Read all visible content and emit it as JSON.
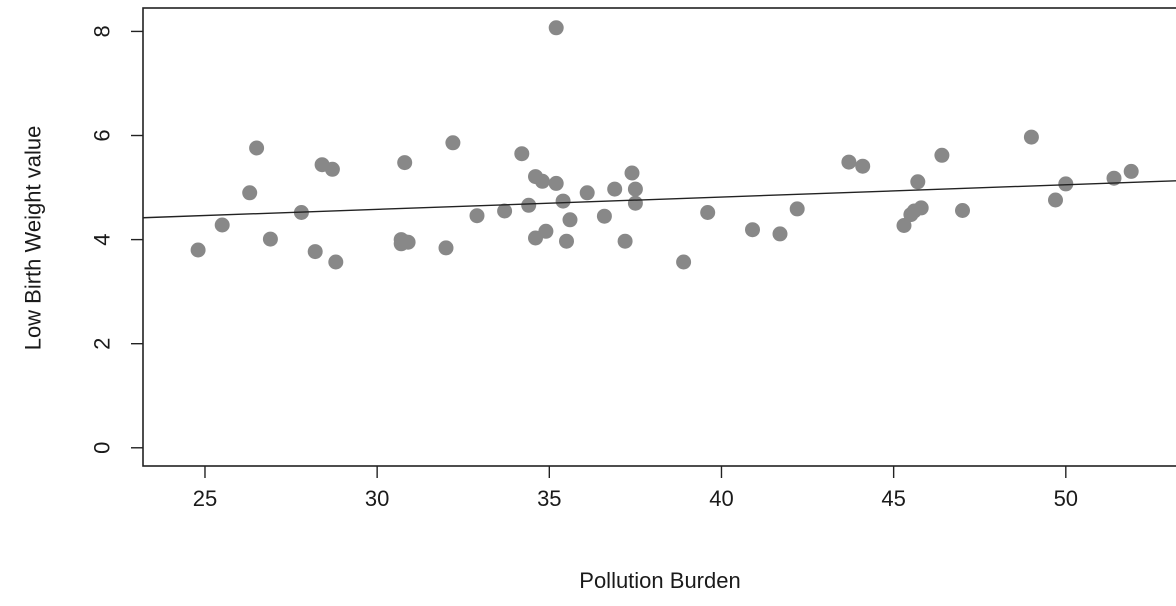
{
  "chart_data": {
    "type": "scatter",
    "title": "",
    "xlabel": "Pollution Burden",
    "ylabel": "Low Birth Weight value",
    "xlim": [
      23.2,
      53.2
    ],
    "ylim": [
      -0.35,
      8.45
    ],
    "xticks": [
      25,
      30,
      35,
      40,
      45,
      50
    ],
    "yticks": [
      0,
      2,
      4,
      6,
      8
    ],
    "xtick_labels": [
      "25",
      "30",
      "35",
      "40",
      "45",
      "50"
    ],
    "ytick_labels": [
      "0",
      "2",
      "4",
      "6",
      "8"
    ],
    "grid": false,
    "legend": "none",
    "point_color": "#888888",
    "line_color": "#222222",
    "points": [
      [
        24.8,
        3.8
      ],
      [
        25.5,
        4.28
      ],
      [
        26.3,
        4.9
      ],
      [
        26.5,
        5.76
      ],
      [
        26.9,
        4.01
      ],
      [
        27.8,
        4.52
      ],
      [
        28.2,
        3.77
      ],
      [
        28.4,
        5.44
      ],
      [
        28.7,
        5.35
      ],
      [
        28.8,
        3.57
      ],
      [
        30.7,
        3.92
      ],
      [
        30.7,
        4.0
      ],
      [
        30.8,
        3.96
      ],
      [
        30.8,
        5.48
      ],
      [
        30.9,
        3.95
      ],
      [
        32.0,
        3.84
      ],
      [
        32.2,
        5.86
      ],
      [
        32.9,
        4.46
      ],
      [
        33.7,
        4.55
      ],
      [
        34.2,
        5.65
      ],
      [
        34.4,
        4.66
      ],
      [
        34.6,
        5.21
      ],
      [
        34.6,
        4.03
      ],
      [
        34.8,
        5.12
      ],
      [
        34.9,
        4.16
      ],
      [
        35.2,
        5.08
      ],
      [
        35.2,
        8.07
      ],
      [
        35.4,
        4.74
      ],
      [
        35.5,
        3.97
      ],
      [
        35.6,
        4.38
      ],
      [
        36.1,
        4.9
      ],
      [
        36.6,
        4.45
      ],
      [
        36.9,
        4.97
      ],
      [
        37.2,
        3.97
      ],
      [
        37.4,
        5.28
      ],
      [
        37.5,
        4.97
      ],
      [
        37.5,
        4.7
      ],
      [
        38.9,
        3.57
      ],
      [
        39.6,
        4.52
      ],
      [
        40.9,
        4.19
      ],
      [
        41.7,
        4.11
      ],
      [
        42.2,
        4.59
      ],
      [
        43.7,
        5.49
      ],
      [
        44.1,
        5.41
      ],
      [
        45.3,
        4.27
      ],
      [
        45.5,
        4.48
      ],
      [
        45.6,
        4.55
      ],
      [
        45.7,
        5.11
      ],
      [
        45.8,
        4.61
      ],
      [
        46.4,
        5.62
      ],
      [
        47.0,
        4.56
      ],
      [
        49.0,
        5.97
      ],
      [
        49.7,
        4.76
      ],
      [
        50.0,
        5.07
      ],
      [
        51.4,
        5.18
      ],
      [
        51.9,
        5.31
      ]
    ],
    "regression": {
      "x": [
        23.2,
        53.2
      ],
      "y": [
        4.42,
        5.13
      ]
    }
  }
}
